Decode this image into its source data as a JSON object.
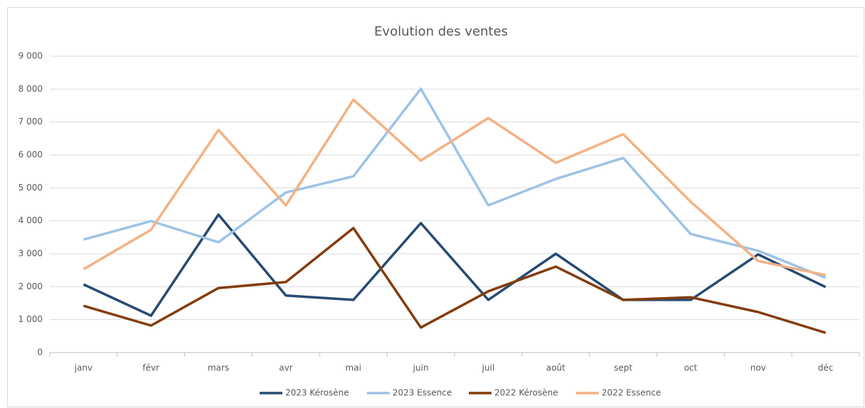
{
  "chart_data": {
    "type": "line",
    "title": "Evolution des ventes",
    "categories": [
      "janv",
      "févr",
      "mars",
      "avr",
      "mai",
      "juin",
      "juil",
      "août",
      "sept",
      "oct",
      "nov",
      "déc"
    ],
    "series": [
      {
        "name": "2023 Kérosène",
        "color": "#264b73",
        "values": [
          2070,
          1120,
          4190,
          1730,
          1600,
          3930,
          1600,
          3000,
          1600,
          1600,
          2980,
          1990
        ]
      },
      {
        "name": "2023 Essence",
        "color": "#9dc3e6",
        "values": [
          3430,
          3990,
          3350,
          4860,
          5350,
          8010,
          4470,
          5270,
          5910,
          3600,
          3090,
          2270
        ]
      },
      {
        "name": "2022 Kérosène",
        "color": "#843c0c",
        "values": [
          1420,
          820,
          1960,
          2140,
          3780,
          760,
          1860,
          2610,
          1600,
          1680,
          1230,
          600
        ]
      },
      {
        "name": "2022 Essence",
        "color": "#f4b183",
        "values": [
          2530,
          3730,
          6760,
          4470,
          7680,
          5830,
          7120,
          5760,
          6630,
          4580,
          2780,
          2350
        ]
      }
    ],
    "ylim": [
      0,
      9000
    ],
    "yticks": [
      0,
      {
        "value": 1000,
        "label": "1 000"
      },
      {
        "value": 2000,
        "label": "2 000"
      },
      {
        "value": 3000,
        "label": "3 000"
      },
      {
        "value": 4000,
        "label": "4 000"
      },
      {
        "value": 5000,
        "label": "5 000"
      },
      {
        "value": 6000,
        "label": "6 000"
      },
      {
        "value": 7000,
        "label": "7 000"
      },
      {
        "value": 8000,
        "label": "8 000"
      },
      {
        "value": 9000,
        "label": "9 000"
      }
    ],
    "grid": true,
    "legend": "bottom"
  }
}
